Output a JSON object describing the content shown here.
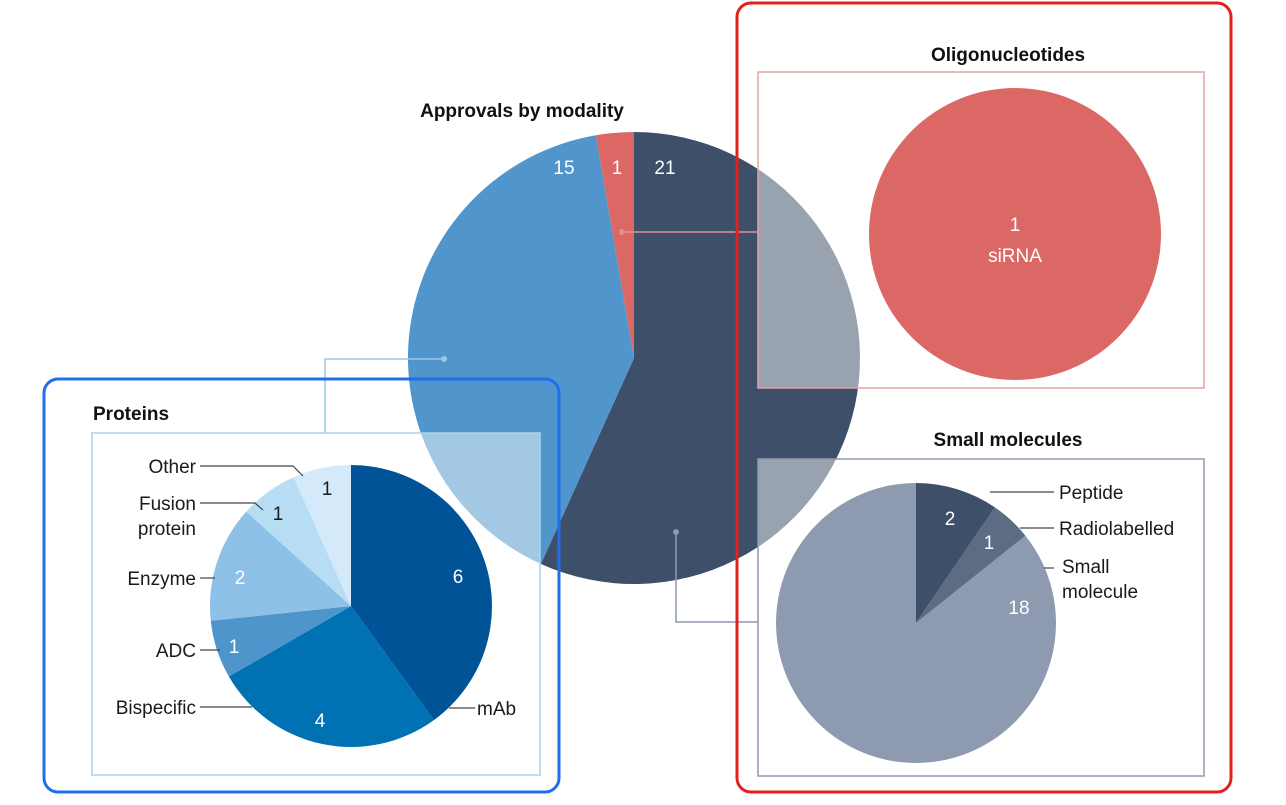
{
  "colors": {
    "highlight_blue": "#1f6fe8",
    "highlight_red": "#e3211c",
    "proteins_frame": "#a9d3ea",
    "oligo_frame": "#e6a3a0",
    "small_frame": "#8e9ab0",
    "connector_blue": "#9cc7e4",
    "connector_red": "#e58f8c",
    "connector_gray": "#8e9ab0"
  },
  "chart_data": [
    {
      "type": "pie",
      "title": "Approvals by modality",
      "slices": [
        {
          "label": "Small molecules",
          "value": 21,
          "color": "#3d4f69"
        },
        {
          "label": "Proteins",
          "value": 15,
          "color": "#5096cc"
        },
        {
          "label": "Oligonucleotides",
          "value": 1,
          "color": "#dc6866"
        }
      ]
    },
    {
      "type": "pie",
      "title": "Proteins",
      "slices": [
        {
          "label": "mAb",
          "value": 6,
          "color": "#005396"
        },
        {
          "label": "Bispecific",
          "value": 4,
          "color": "#0072b3"
        },
        {
          "label": "ADC",
          "value": 1,
          "color": "#4e95cb"
        },
        {
          "label": "Enzyme",
          "value": 2,
          "color": "#8dc1e7"
        },
        {
          "label": "Fusion\nprotein",
          "value": 1,
          "color": "#b7ddf4"
        },
        {
          "label": "Other",
          "value": 1,
          "color": "#d4eafb"
        }
      ]
    },
    {
      "type": "pie",
      "title": "Oligonucleotides",
      "slices": [
        {
          "label": "siRNA",
          "value": 1,
          "color": "#dc6866"
        }
      ]
    },
    {
      "type": "pie",
      "title": "Small molecules",
      "slices": [
        {
          "label": "Peptide",
          "value": 2,
          "color": "#3d4f69"
        },
        {
          "label": "Radiolabelled",
          "value": 1,
          "color": "#5d6b83"
        },
        {
          "label": "Small\nmolecule",
          "value": 18,
          "color": "#8e9ab0"
        }
      ]
    }
  ]
}
